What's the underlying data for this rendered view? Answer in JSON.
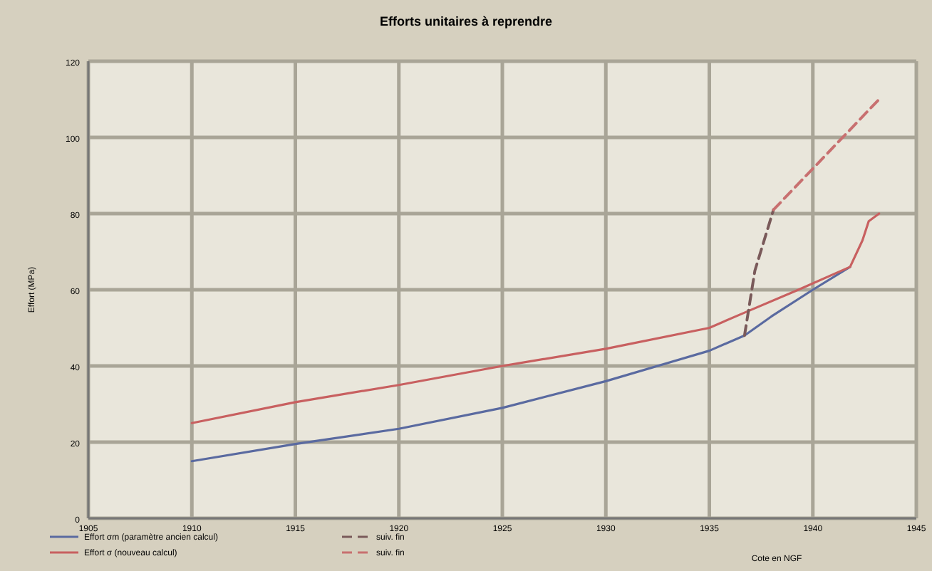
{
  "chart_data": {
    "type": "line",
    "title": "Efforts unitaires à reprendre",
    "xlabel": "Cote en NGF",
    "ylabel": "Effort (MPa)",
    "xlim": [
      1905,
      1945
    ],
    "xticks": [
      1905,
      1910,
      1915,
      1920,
      1925,
      1930,
      1935,
      1940,
      1945
    ],
    "ylim": [
      0,
      120
    ],
    "yticks": [
      0,
      20,
      40,
      60,
      80,
      100,
      120
    ],
    "grid": true,
    "legend": "bottom",
    "line_style": "solid",
    "series": [
      {
        "name": "Effort σm (paramètre ancien calcul)",
        "color": "#5a6aa0",
        "x": [
          1910,
          1915,
          1920,
          1925,
          1930,
          1935,
          1936.7,
          1938,
          1940,
          1941.8
        ],
        "values": [
          15,
          19.5,
          23.5,
          29,
          36,
          44,
          48,
          53,
          60,
          66
        ]
      },
      {
        "name": "Effort σ (nouveau calcul)",
        "color": "#c86060",
        "x": [
          1910,
          1915,
          1920,
          1925,
          1930,
          1935,
          1936.7,
          1939.3,
          1941.8,
          1942.4,
          1942.7,
          1943.2
        ],
        "values": [
          25,
          30.5,
          35,
          40,
          44.5,
          50,
          54,
          60,
          66,
          73,
          78,
          80
        ]
      },
      {
        "name": "suiv. fin",
        "color": "#7a5a5a",
        "line_style": "dashed",
        "x": [
          1936.7,
          1937.2,
          1938.1
        ],
        "values": [
          48,
          65,
          81
        ]
      },
      {
        "name": "suiv. fin",
        "color": "#c87070",
        "line_style": "dashed",
        "x": [
          1938.1,
          1943.2
        ],
        "values": [
          81,
          110
        ]
      }
    ]
  }
}
